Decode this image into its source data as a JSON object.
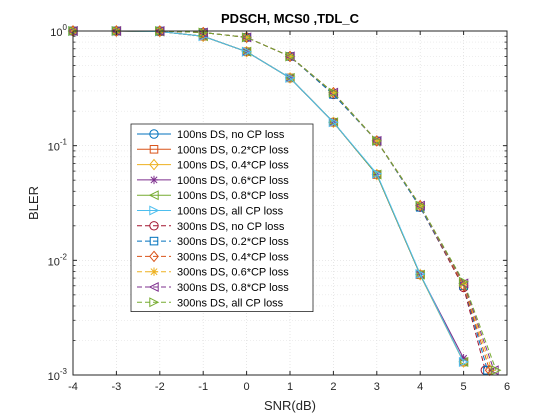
{
  "chart_data": {
    "type": "line",
    "title": "PDSCH, MCS0 ,TDL_C",
    "xlabel": "SNR(dB)",
    "ylabel": "BLER",
    "x_scale": "linear",
    "y_scale": "log",
    "xlim": [
      -4,
      6
    ],
    "ylim": [
      0.001,
      1
    ],
    "x_ticks": [
      -4,
      -3,
      -2,
      -1,
      0,
      1,
      2,
      3,
      4,
      5,
      6
    ],
    "y_ticks": [
      {
        "value": 1,
        "base": "10",
        "exp": "0"
      },
      {
        "value": 0.1,
        "base": "10",
        "exp": "-1"
      },
      {
        "value": 0.01,
        "base": "10",
        "exp": "-2"
      },
      {
        "value": 0.001,
        "base": "10",
        "exp": "-3"
      }
    ],
    "grid": true,
    "minor_grid": true,
    "legend_position": "center-left",
    "series": [
      {
        "name": "100ns DS, no CP loss",
        "color": "#0072BD",
        "dash": "solid",
        "marker": "circle",
        "x": [
          -4,
          -3,
          -2,
          -1,
          0,
          1,
          2,
          3,
          4,
          5
        ],
        "y": [
          1.0,
          1.0,
          0.99,
          0.9,
          0.66,
          0.39,
          0.16,
          0.056,
          0.0075,
          0.0013
        ]
      },
      {
        "name": "100ns DS, 0.2*CP loss",
        "color": "#D95319",
        "dash": "solid",
        "marker": "square",
        "x": [
          -4,
          -3,
          -2,
          -1,
          0,
          1,
          2,
          3,
          4,
          5
        ],
        "y": [
          1.0,
          1.0,
          0.99,
          0.9,
          0.66,
          0.39,
          0.16,
          0.056,
          0.0075,
          0.0013
        ]
      },
      {
        "name": "100ns DS, 0.4*CP loss",
        "color": "#EDB120",
        "dash": "solid",
        "marker": "diamond",
        "x": [
          -4,
          -3,
          -2,
          -1,
          0,
          1,
          2,
          3,
          4,
          5
        ],
        "y": [
          1.0,
          1.0,
          0.99,
          0.9,
          0.66,
          0.39,
          0.16,
          0.056,
          0.0075,
          0.0013
        ]
      },
      {
        "name": "100ns DS, 0.6*CP loss",
        "color": "#7E2F8E",
        "dash": "solid",
        "marker": "asterisk",
        "x": [
          -4,
          -3,
          -2,
          -1,
          0,
          1,
          2,
          3,
          4,
          5
        ],
        "y": [
          1.0,
          1.0,
          0.99,
          0.9,
          0.66,
          0.39,
          0.16,
          0.056,
          0.0075,
          0.0014
        ]
      },
      {
        "name": "100ns DS, 0.8*CP loss",
        "color": "#77AC30",
        "dash": "solid",
        "marker": "triangle-left",
        "x": [
          -4,
          -3,
          -2,
          -1,
          0,
          1,
          2,
          3,
          4,
          5
        ],
        "y": [
          1.0,
          1.0,
          0.99,
          0.9,
          0.66,
          0.39,
          0.16,
          0.056,
          0.0075,
          0.0013
        ]
      },
      {
        "name": "100ns DS, all CP loss",
        "color": "#4DBEEE",
        "dash": "solid",
        "marker": "triangle-right",
        "x": [
          -4,
          -3,
          -2,
          -1,
          0,
          1,
          2,
          3,
          4,
          5
        ],
        "y": [
          1.0,
          1.0,
          0.99,
          0.9,
          0.66,
          0.39,
          0.16,
          0.057,
          0.0076,
          0.0013
        ]
      },
      {
        "name": "300ns DS, no CP loss",
        "color": "#A2142F",
        "dash": "dashed",
        "marker": "circle",
        "x": [
          -4,
          -3,
          -2,
          -1,
          0,
          1,
          2,
          3,
          4,
          5,
          5.5
        ],
        "y": [
          1.0,
          1.0,
          1.0,
          0.97,
          0.88,
          0.6,
          0.28,
          0.11,
          0.029,
          0.0058,
          0.0011
        ]
      },
      {
        "name": "300ns DS, 0.2*CP loss",
        "color": "#0072BD",
        "dash": "dashed",
        "marker": "square",
        "x": [
          -4,
          -3,
          -2,
          -1,
          0,
          1,
          2,
          3,
          4,
          5,
          5.55
        ],
        "y": [
          1.0,
          1.0,
          1.0,
          0.97,
          0.88,
          0.6,
          0.28,
          0.11,
          0.029,
          0.006,
          0.0011
        ]
      },
      {
        "name": "300ns DS, 0.4*CP loss",
        "color": "#D95319",
        "dash": "dashed",
        "marker": "diamond",
        "x": [
          -4,
          -3,
          -2,
          -1,
          0,
          1,
          2,
          3,
          4,
          5,
          5.6
        ],
        "y": [
          1.0,
          1.0,
          1.0,
          0.97,
          0.88,
          0.6,
          0.29,
          0.11,
          0.03,
          0.006,
          0.0011
        ]
      },
      {
        "name": "300ns DS, 0.6*CP loss",
        "color": "#EDB120",
        "dash": "dashed",
        "marker": "asterisk",
        "x": [
          -4,
          -3,
          -2,
          -1,
          0,
          1,
          2,
          3,
          4,
          5,
          5.65
        ],
        "y": [
          1.0,
          1.0,
          1.0,
          0.97,
          0.88,
          0.6,
          0.29,
          0.11,
          0.03,
          0.0062,
          0.0011
        ]
      },
      {
        "name": "300ns DS, 0.8*CP loss",
        "color": "#7E2F8E",
        "dash": "dashed",
        "marker": "triangle-left",
        "x": [
          -4,
          -3,
          -2,
          -1,
          0,
          1,
          2,
          3,
          4,
          5,
          5.7
        ],
        "y": [
          1.0,
          1.0,
          1.0,
          0.97,
          0.88,
          0.6,
          0.29,
          0.11,
          0.03,
          0.0063,
          0.0011
        ]
      },
      {
        "name": "300ns DS, all CP loss",
        "color": "#77AC30",
        "dash": "dashed",
        "marker": "triangle-right",
        "x": [
          -4,
          -3,
          -2,
          -1,
          0,
          1,
          2,
          3,
          4,
          5,
          5.75
        ],
        "y": [
          1.0,
          1.0,
          1.0,
          0.97,
          0.88,
          0.6,
          0.29,
          0.11,
          0.03,
          0.0065,
          0.0011
        ]
      }
    ]
  }
}
